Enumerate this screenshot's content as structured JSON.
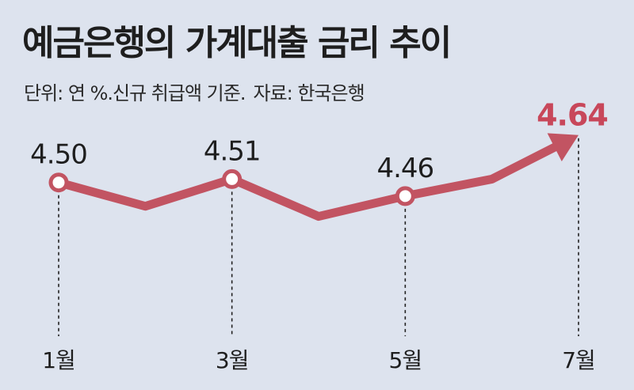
{
  "header": {
    "title": "예금은행의 가계대출 금리 추이",
    "unit": "단위: 연 %.신규 취급액 기준.",
    "source": "자료: 한국은행"
  },
  "colors": {
    "line": "#c25462",
    "highlight": "#c8475a",
    "text": "#1e1e1e",
    "background": "#dde3ee"
  },
  "chart_data": {
    "type": "line",
    "x": [
      1,
      2,
      3,
      4,
      5,
      6,
      7
    ],
    "categories": [
      "1월",
      "3월",
      "5월",
      "7월"
    ],
    "category_months": [
      1,
      3,
      5,
      7
    ],
    "values": [
      4.5,
      4.43,
      4.51,
      4.4,
      4.46,
      4.51,
      4.64
    ],
    "labeled_points": [
      {
        "month": 1,
        "label": "4.50"
      },
      {
        "month": 3,
        "label": "4.51"
      },
      {
        "month": 5,
        "label": "4.46"
      },
      {
        "month": 7,
        "label": "4.64"
      }
    ],
    "ylim": [
      4.35,
      4.7
    ],
    "grid": false,
    "legend": "none"
  }
}
